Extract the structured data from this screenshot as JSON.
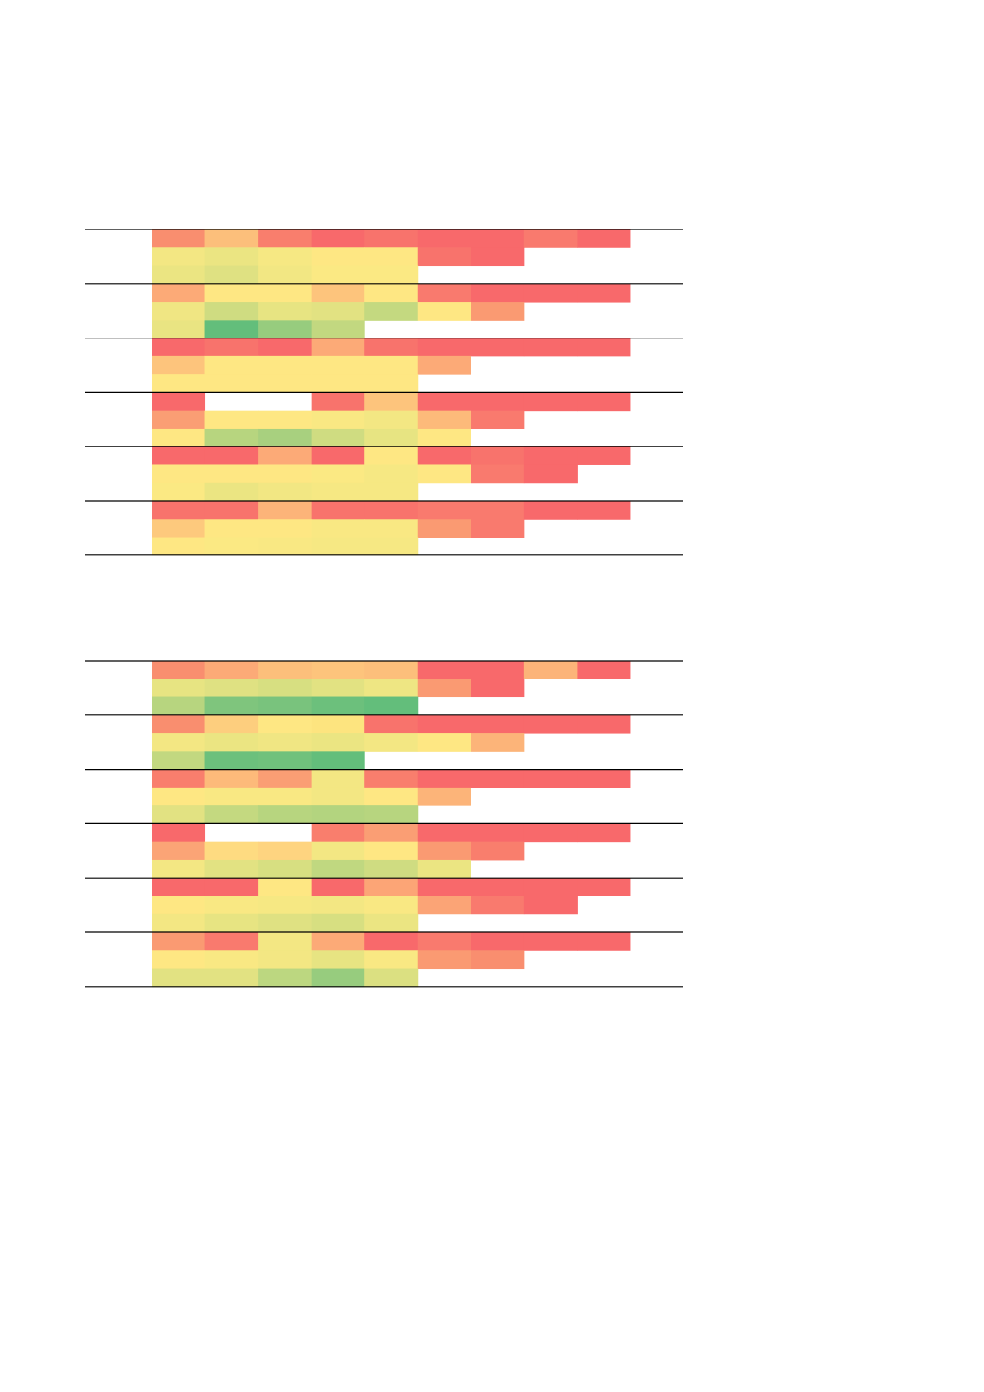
{
  "tables": [
    {
      "groups": [
        [
          [
            "#f98e6f",
            "#fcbf7b",
            "#f97e6d",
            "#f8696b",
            "#f8736c",
            "#f8696b",
            "#f8696b",
            "#f97a6e",
            "#f8696b"
          ],
          [
            "#f3e783",
            "#ebe582",
            "#f6e883",
            "#fee783",
            "#fee783",
            "#f8736c",
            "#f8696b"
          ],
          [
            "#ebe582",
            "#dfe182",
            "#f2e783",
            "#fbe983",
            "#fbe983"
          ]
        ],
        [
          [
            "#fcaa77",
            "#fee783",
            "#fee783",
            "#fdc47c",
            "#fee783",
            "#f97a6e",
            "#f8696b",
            "#f8696b",
            "#f8696b"
          ],
          [
            "#f0e683",
            "#cfdc81",
            "#e7e482",
            "#e2e282",
            "#c4d980",
            "#fee783",
            "#fa9a72"
          ],
          [
            "#e9e482",
            "#63be7b",
            "#97cc7e",
            "#c2d880"
          ]
        ],
        [
          [
            "#f8696b",
            "#f8736c",
            "#f8696b",
            "#fcaa77",
            "#f8736c",
            "#f8696b",
            "#f8696b",
            "#f8696b",
            "#f8696b"
          ],
          [
            "#fdc47c",
            "#fee783",
            "#fee783",
            "#fee783",
            "#fee783",
            "#fcaa77"
          ],
          [
            "#fee783",
            "#fee783",
            "#fee783",
            "#fee783",
            "#fee783"
          ]
        ],
        [
          [
            "#f8696b",
            null,
            null,
            "#f8736c",
            "#fdc47c",
            "#f8696b",
            "#f8696b",
            "#f8696b",
            "#f8696b"
          ],
          [
            "#fa9e74",
            "#fee783",
            "#fee783",
            "#f9e883",
            "#f3e783",
            "#fdba7a",
            "#f97a6e"
          ],
          [
            "#fee783",
            "#b7d57f",
            "#a8d07f",
            "#cfdc81",
            "#e7e482",
            "#fee783"
          ]
        ],
        [
          [
            "#f8696b",
            "#f8696b",
            "#fcaa77",
            "#f8696b",
            "#fee783",
            "#f8696b",
            "#f8736c",
            "#f8696b",
            "#f8696b"
          ],
          [
            "#fee783",
            "#fee783",
            "#fee783",
            "#fbe983",
            "#f6e883",
            "#fee783",
            "#f97a6e",
            "#f8696b"
          ],
          [
            "#fbe983",
            "#ebe582",
            "#f2e783",
            "#f6e883",
            "#f6e883"
          ]
        ],
        [
          [
            "#f8736c",
            "#f8736c",
            "#fcb479",
            "#f8736c",
            "#f8736c",
            "#f97a6e",
            "#f97a6e",
            "#f8696b",
            "#f8696b"
          ],
          [
            "#fdc97d",
            "#fee783",
            "#fee783",
            "#f9e883",
            "#f9e883",
            "#fa9a72",
            "#f97a6e"
          ],
          [
            "#fee783",
            "#fbe983",
            "#f9e883",
            "#f6e883",
            "#f6e883"
          ]
        ]
      ]
    },
    {
      "groups": [
        [
          [
            "#f98e6f",
            "#fcaa77",
            "#fcbf7b",
            "#fdc47c",
            "#fcbf7b",
            "#f8696b",
            "#f8696b",
            "#fcb479",
            "#f8696b"
          ],
          [
            "#e7e482",
            "#dfe182",
            "#d7df81",
            "#e2e282",
            "#eee683",
            "#fa9a72",
            "#f8696b"
          ],
          [
            "#b7d57f",
            "#7fc57d",
            "#79c37d",
            "#6cc07c",
            "#63be7b"
          ]
        ],
        [
          [
            "#f98e6f",
            "#fdce7e",
            "#fee783",
            "#fde47f",
            "#f8736c",
            "#f8696b",
            "#f8696b",
            "#f8696b",
            "#f8696b"
          ],
          [
            "#f3e783",
            "#ebe582",
            "#f0e683",
            "#ebe582",
            "#f3e783",
            "#fee783",
            "#fcb479"
          ],
          [
            "#c2d880",
            "#6cc07c",
            "#70c17c",
            "#63be7b"
          ]
        ],
        [
          [
            "#f97e6d",
            "#fdba7a",
            "#fa9e74",
            "#f3e783",
            "#f97e6d",
            "#f8696b",
            "#f8696b",
            "#f8696b",
            "#f8696b"
          ],
          [
            "#fee783",
            "#f9e883",
            "#f9e883",
            "#f3e783",
            "#fee783",
            "#fcb479"
          ],
          [
            "#e2e282",
            "#c4d980",
            "#b7d57f",
            "#b3d47f",
            "#b7d57f"
          ]
        ],
        [
          [
            "#f8696b",
            null,
            null,
            "#f97e6d",
            "#fa9e74",
            "#f8696b",
            "#f8696b",
            "#f8696b",
            "#f8696b"
          ],
          [
            "#fba476",
            "#fedb81",
            "#fed480",
            "#f3e783",
            "#fee783",
            "#fa9a72",
            "#f97e6d"
          ],
          [
            "#f3e783",
            "#e2e282",
            "#d7df81",
            "#c0d880",
            "#cfdc81",
            "#ebe582"
          ]
        ],
        [
          [
            "#f8696b",
            "#f8696b",
            "#fee783",
            "#f8696b",
            "#fca576",
            "#f8696b",
            "#f8696b",
            "#f8696b",
            "#f8696b"
          ],
          [
            "#fee783",
            "#f9e883",
            "#f6e883",
            "#f3e783",
            "#f9e883",
            "#fba476",
            "#f97a6e",
            "#f8696b"
          ],
          [
            "#f3e783",
            "#e7e482",
            "#dfe182",
            "#d7df81",
            "#ebe582"
          ]
        ],
        [
          [
            "#fa9a72",
            "#f97a6e",
            "#f3e783",
            "#fcaa77",
            "#f8696b",
            "#f97a6e",
            "#f8696b",
            "#f8696b",
            "#f8696b"
          ],
          [
            "#fee783",
            "#f9e883",
            "#f3e783",
            "#e7e482",
            "#f9e883",
            "#fa9a72",
            "#f98e6f"
          ],
          [
            "#e2e282",
            "#e2e282",
            "#bcd780",
            "#97cc7e",
            "#dbe081"
          ]
        ]
      ]
    }
  ]
}
